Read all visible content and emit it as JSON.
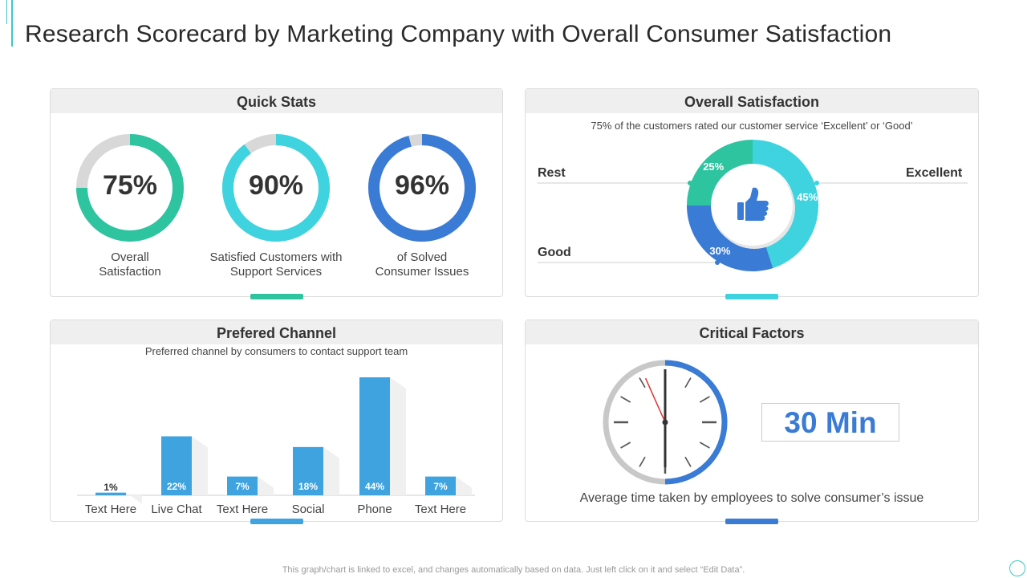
{
  "title": "Research Scorecard by Marketing Company with Overall Consumer Satisfaction",
  "colors": {
    "teal": "#2ec4a0",
    "cyan": "#3fd3e0",
    "blue": "#3a7bd5",
    "grey": "#d8d8d8",
    "bar": "#3fa3e0"
  },
  "quick_stats": {
    "heading": "Quick Stats",
    "items": [
      {
        "percent": "75%",
        "value": 75,
        "label": "Overall Satisfaction",
        "label_line1": "Overall",
        "label_line2": "Satisfaction"
      },
      {
        "percent": "90%",
        "value": 90,
        "label": "Satisfied Customers with Support Services",
        "label_line1": "Satisfied Customers with",
        "label_line2": "Support Services"
      },
      {
        "percent": "96%",
        "value": 96,
        "label": "of Solved Consumer Issues",
        "label_line1": "of Solved",
        "label_line2": "Consumer Issues"
      }
    ]
  },
  "overall_satisfaction": {
    "heading": "Overall Satisfaction",
    "subtitle": "75% of the customers rated our customer service ‘Excellent’ or ‘Good’",
    "labels": {
      "rest": "Rest",
      "excellent": "Excellent",
      "good": "Good"
    }
  },
  "preferred_channel": {
    "heading": "Prefered Channel",
    "subtitle": "Preferred  channel by consumers to contact support team"
  },
  "critical_factors": {
    "heading": "Critical Factors",
    "value": "30 Min",
    "caption": "Average time taken by employees to solve consumer’s issue",
    "clock_minutes": 30
  },
  "footer": "This graph/chart is linked to excel,  and changes automatically based on data. Just left click on it and select “Edit Data”.",
  "chart_data": [
    {
      "type": "pie",
      "title": "Overall Satisfaction",
      "categories": [
        "Excellent",
        "Good",
        "Rest"
      ],
      "values": [
        45,
        30,
        25
      ],
      "value_labels": [
        "45%",
        "30%",
        "25%"
      ]
    },
    {
      "type": "bar",
      "title": "Prefered Channel",
      "categories": [
        "Text Here",
        "Live Chat",
        "Text Here",
        "Social",
        "Phone",
        "Text Here"
      ],
      "values": [
        1,
        22,
        7,
        18,
        44,
        7
      ],
      "value_labels": [
        "1%",
        "22%",
        "7%",
        "18%",
        "44%",
        "7%"
      ],
      "ylim": [
        0,
        44
      ]
    }
  ]
}
